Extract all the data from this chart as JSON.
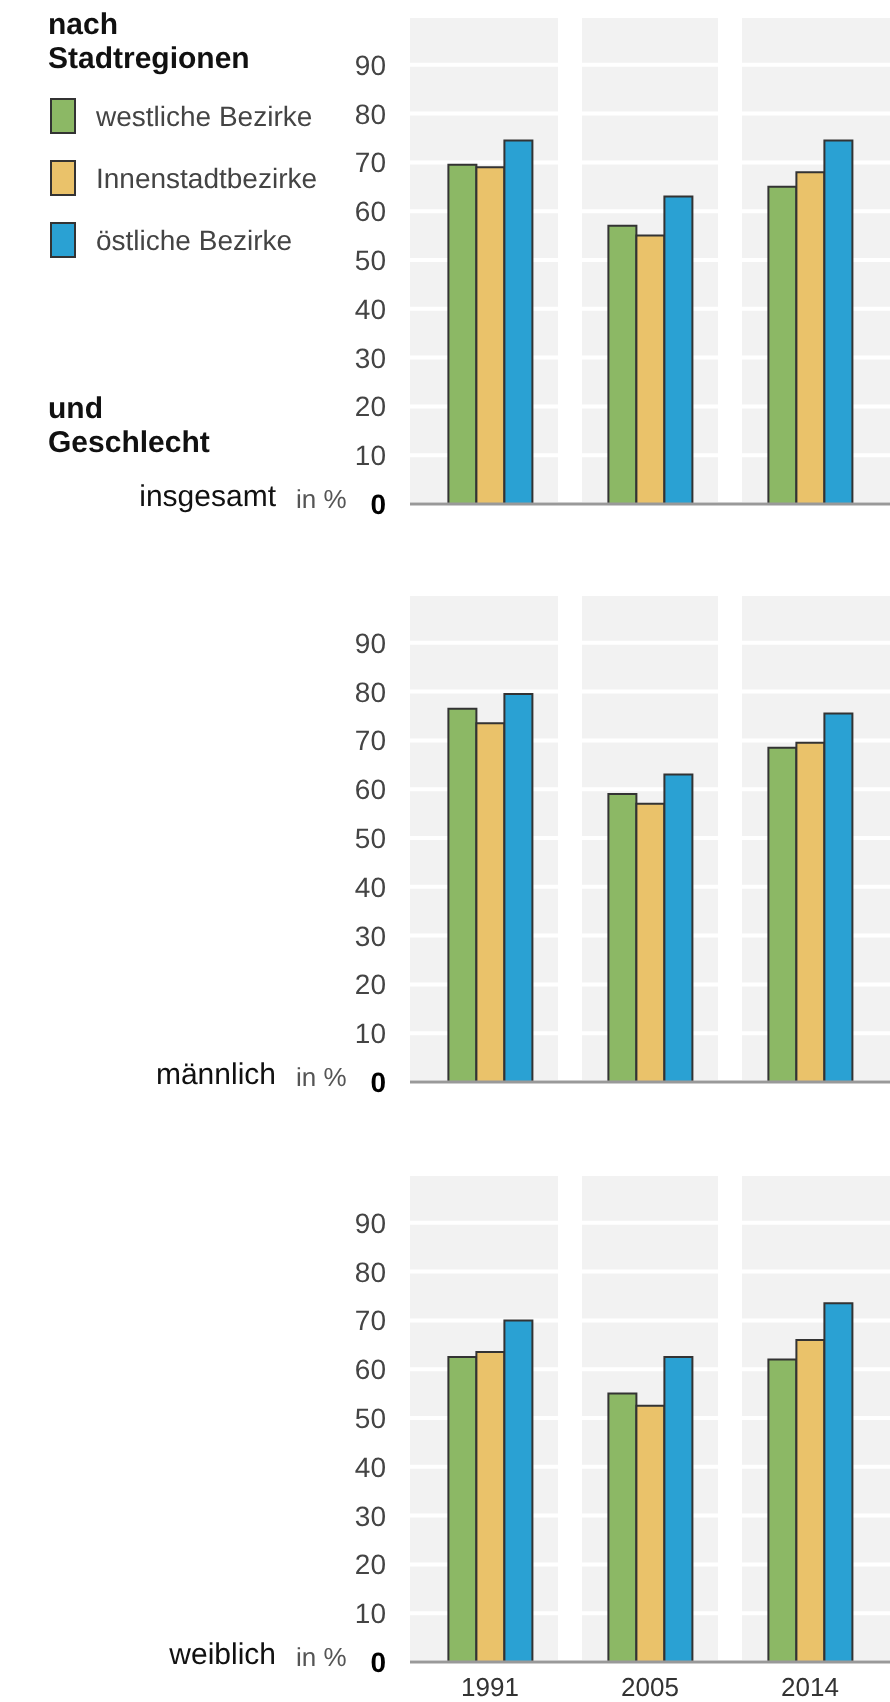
{
  "chart_data": [
    {
      "type": "bar",
      "title": "nach Stadtregionen",
      "subtitle": "und Geschlecht",
      "ylabel": "in %",
      "annotations": [
        "insgesamt"
      ],
      "categories": [
        "1991",
        "2005",
        "2014"
      ],
      "legend": "top left",
      "grid": "y",
      "tick_labels": "y",
      "ylim": [
        0,
        100
      ],
      "yticks": [
        0,
        10,
        20,
        30,
        40,
        50,
        60,
        70,
        80,
        90
      ],
      "series": [
        {
          "name": "westliche Bezirke",
          "color": "#8cb865",
          "values": [
            69.5,
            57,
            65
          ]
        },
        {
          "name": "Innenstadtbezirke",
          "color": "#eac26a",
          "values": [
            69,
            55,
            68
          ]
        },
        {
          "name": "östliche Bezirke",
          "color": "#2aa1d3",
          "values": [
            74.5,
            63,
            74.5
          ]
        }
      ]
    },
    {
      "type": "bar",
      "ylabel": "in %",
      "annotations": [
        "männlich"
      ],
      "categories": [
        "1991",
        "2005",
        "2014"
      ],
      "grid": "y",
      "tick_labels": "y",
      "ylim": [
        0,
        100
      ],
      "yticks": [
        0,
        10,
        20,
        30,
        40,
        50,
        60,
        70,
        80,
        90
      ],
      "series": [
        {
          "color": "#8cb865",
          "values": [
            76.5,
            59,
            68.5
          ]
        },
        {
          "color": "#eac26a",
          "values": [
            73.5,
            57,
            69.5
          ]
        },
        {
          "color": "#2aa1d3",
          "values": [
            79.5,
            63,
            75.5
          ]
        }
      ]
    },
    {
      "type": "bar",
      "ylabel": "in %",
      "annotations": [
        "weiblich"
      ],
      "categories": [
        "1991",
        "2005",
        "2014"
      ],
      "grid": "y",
      "ylim": [
        0,
        100
      ],
      "yticks": [
        0,
        10,
        20,
        30,
        40,
        50,
        60,
        70,
        80,
        90
      ],
      "series": [
        {
          "color": "#8cb865",
          "values": [
            62.5,
            55,
            62
          ]
        },
        {
          "color": "#eac26a",
          "values": [
            63.5,
            52.5,
            66
          ]
        },
        {
          "color": "#2aa1d3",
          "values": [
            70,
            62.5,
            73.5
          ]
        }
      ]
    }
  ]
}
